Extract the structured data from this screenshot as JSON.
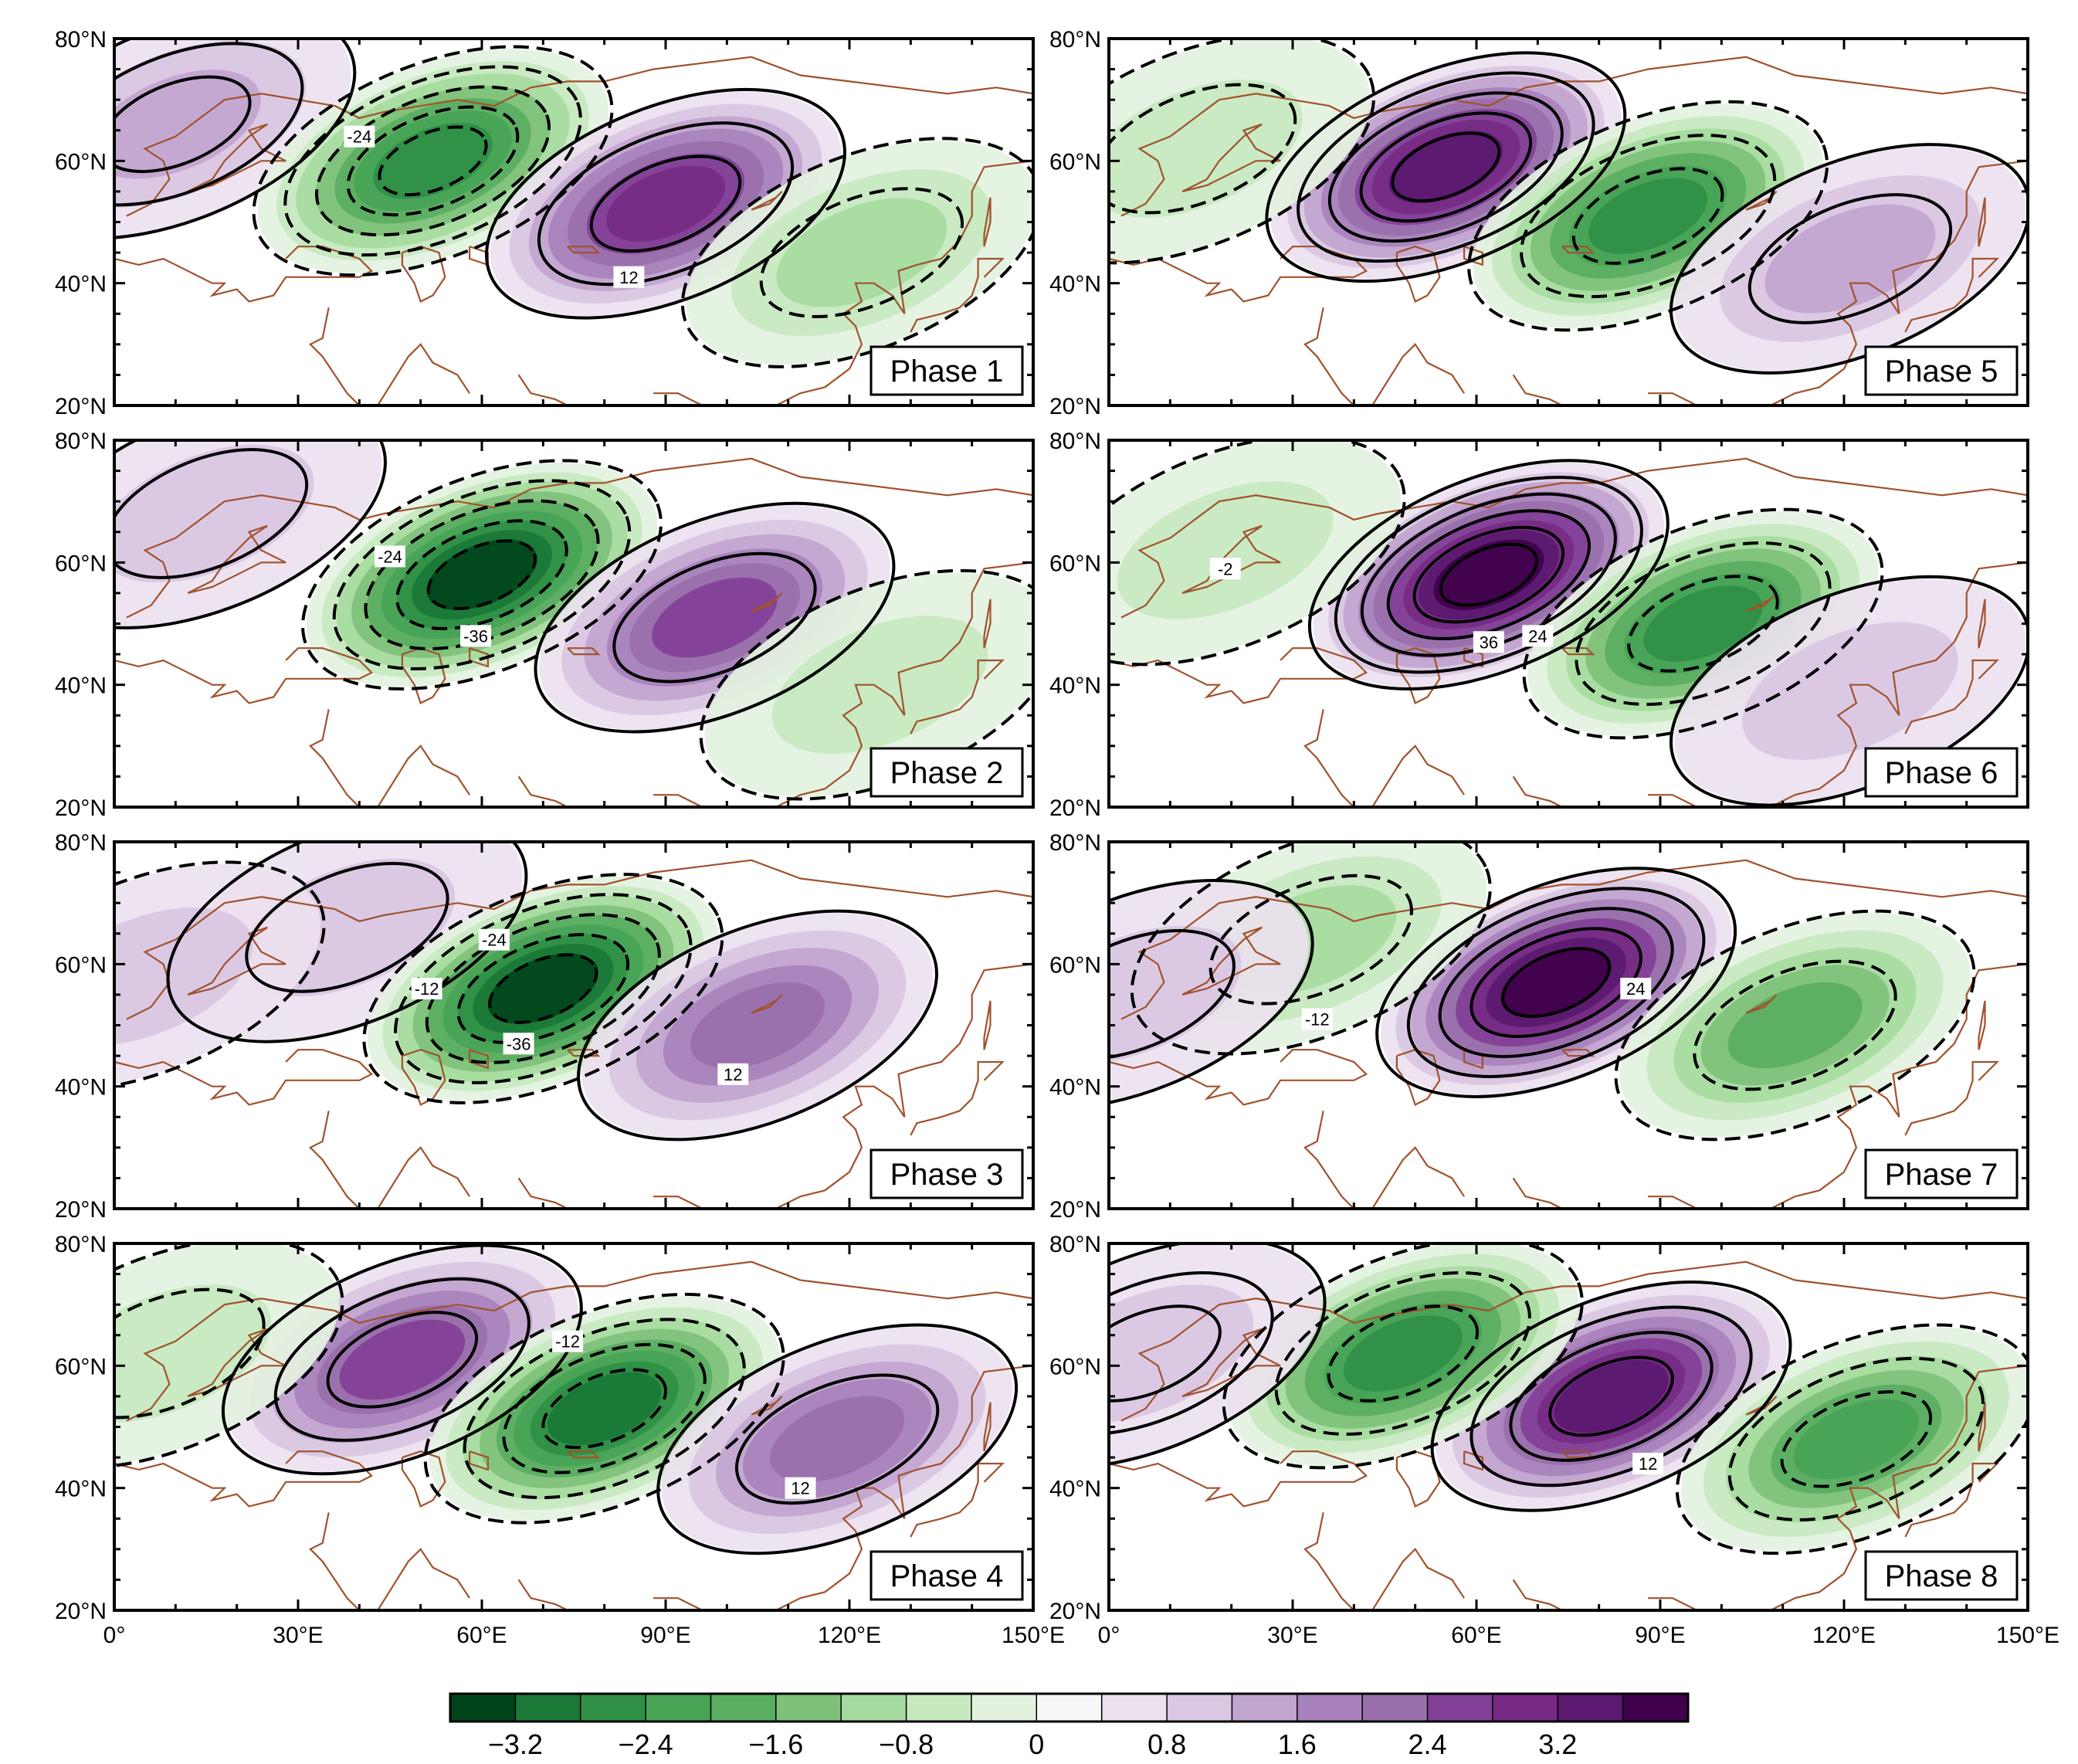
{
  "figure": {
    "type": "multi-panel anomaly map",
    "lat_labels": [
      "80°N",
      "60°N",
      "40°N",
      "20°N"
    ],
    "lon_labels": [
      "0°",
      "30°E",
      "60°E",
      "90°E",
      "120°E",
      "150°E"
    ],
    "lon_range": [
      0,
      150
    ],
    "lat_range": [
      20,
      80
    ]
  },
  "panels": [
    {
      "label": "Phase 1",
      "features": [
        {
          "lon": 10,
          "lat": 66,
          "value": 1.0,
          "contour": 12,
          "n": 3
        },
        {
          "lon": 52,
          "lat": 60,
          "value": -2.8,
          "contour": -24,
          "n": 5
        },
        {
          "lon": 90,
          "lat": 53,
          "value": 2.6,
          "contour": 12,
          "n": 3
        },
        {
          "lon": 122,
          "lat": 45,
          "value": -1.0,
          "contour": -12,
          "n": 2
        }
      ],
      "contour_labels": [
        {
          "text": "-24",
          "lon": 40,
          "lat": 64
        },
        {
          "text": "12",
          "lon": 84,
          "lat": 41
        }
      ]
    },
    {
      "label": "Phase 2",
      "features": [
        {
          "lon": 15,
          "lat": 68,
          "value": 0.6,
          "contour": 12,
          "n": 2
        },
        {
          "lon": 60,
          "lat": 58,
          "value": -3.4,
          "contour": -36,
          "n": 5
        },
        {
          "lon": 98,
          "lat": 51,
          "value": 2.4,
          "contour": 12,
          "n": 2
        },
        {
          "lon": 125,
          "lat": 40,
          "value": -0.8,
          "contour": -12,
          "n": 1
        }
      ],
      "contour_labels": [
        {
          "text": "-24",
          "lon": 45,
          "lat": 61
        },
        {
          "text": "-36",
          "lon": 59,
          "lat": 48
        }
      ]
    },
    {
      "label": "Phase 3",
      "features": [
        {
          "lon": 38,
          "lat": 66,
          "value": 0.8,
          "contour": 12,
          "n": 2
        },
        {
          "lon": 70,
          "lat": 56,
          "value": -3.4,
          "contour": -36,
          "n": 5
        },
        {
          "lon": 105,
          "lat": 50,
          "value": 1.8,
          "contour": 12,
          "n": 1
        },
        {
          "lon": 5,
          "lat": 58,
          "value": 0.2,
          "contour": -12,
          "n": 1
        }
      ],
      "contour_labels": [
        {
          "text": "-24",
          "lon": 62,
          "lat": 64
        },
        {
          "text": "-12",
          "lon": 51,
          "lat": 56
        },
        {
          "text": "-36",
          "lon": 66,
          "lat": 47
        },
        {
          "text": "12",
          "lon": 101,
          "lat": 42
        }
      ]
    },
    {
      "label": "Phase 4",
      "features": [
        {
          "lon": 47,
          "lat": 61,
          "value": 2.4,
          "contour": 12,
          "n": 3
        },
        {
          "lon": 80,
          "lat": 53,
          "value": -3.2,
          "contour": -12,
          "n": 4
        },
        {
          "lon": 118,
          "lat": 48,
          "value": 2.0,
          "contour": 12,
          "n": 2
        },
        {
          "lon": 8,
          "lat": 62,
          "value": -0.4,
          "contour": -12,
          "n": 2
        }
      ],
      "contour_labels": [
        {
          "text": "-12",
          "lon": 74,
          "lat": 64
        },
        {
          "text": "12",
          "lon": 112,
          "lat": 40
        }
      ]
    },
    {
      "label": "Phase 5",
      "features": [
        {
          "lon": 55,
          "lat": 59,
          "value": 3.2,
          "contour": 12,
          "n": 5
        },
        {
          "lon": 88,
          "lat": 51,
          "value": -2.8,
          "contour": -12,
          "n": 3
        },
        {
          "lon": 121,
          "lat": 44,
          "value": 1.4,
          "contour": 12,
          "n": 2
        },
        {
          "lon": 14,
          "lat": 62,
          "value": -0.6,
          "contour": -12,
          "n": 2
        }
      ],
      "contour_labels": []
    },
    {
      "label": "Phase 6",
      "features": [
        {
          "lon": 62,
          "lat": 58,
          "value": 3.6,
          "contour": 36,
          "n": 6
        },
        {
          "lon": 97,
          "lat": 50,
          "value": -2.6,
          "contour": -12,
          "n": 3
        },
        {
          "lon": 121,
          "lat": 39,
          "value": 0.6,
          "contour": 12,
          "n": 1
        },
        {
          "lon": 19,
          "lat": 62,
          "value": -0.6,
          "contour": -12,
          "n": 1
        }
      ],
      "contour_labels": [
        {
          "text": "-2",
          "lon": 19,
          "lat": 59
        },
        {
          "text": "36",
          "lon": 62,
          "lat": 47
        },
        {
          "text": "24",
          "lon": 70,
          "lat": 48
        }
      ]
    },
    {
      "label": "Phase 7",
      "features": [
        {
          "lon": 73,
          "lat": 57,
          "value": 3.4,
          "contour": 24,
          "n": 5
        },
        {
          "lon": 112,
          "lat": 50,
          "value": -2.0,
          "contour": -12,
          "n": 2
        },
        {
          "lon": 33,
          "lat": 64,
          "value": -1.2,
          "contour": -12,
          "n": 2
        },
        {
          "lon": 4,
          "lat": 55,
          "value": 0.4,
          "contour": 12,
          "n": 2
        }
      ],
      "contour_labels": [
        {
          "text": "-12",
          "lon": 34,
          "lat": 51
        },
        {
          "text": "24",
          "lon": 86,
          "lat": 56
        }
      ]
    },
    {
      "label": "Phase 8",
      "features": [
        {
          "lon": 82,
          "lat": 55,
          "value": 3.2,
          "contour": 12,
          "n": 4
        },
        {
          "lon": 48,
          "lat": 62,
          "value": -2.6,
          "contour": -12,
          "n": 3
        },
        {
          "lon": 122,
          "lat": 48,
          "value": -2.2,
          "contour": -12,
          "n": 3
        },
        {
          "lon": 6,
          "lat": 62,
          "value": 0.4,
          "contour": 12,
          "n": 3
        }
      ],
      "contour_labels": [
        {
          "text": "12",
          "lon": 88,
          "lat": 44
        }
      ]
    }
  ],
  "colorbar": {
    "levels": [
      -3.6,
      -3.2,
      -2.8,
      -2.4,
      -2.0,
      -1.6,
      -1.2,
      -0.8,
      -0.4,
      0,
      0.4,
      0.8,
      1.2,
      1.6,
      2.0,
      2.4,
      2.8,
      3.2,
      3.6
    ],
    "colors": [
      "#00441b",
      "#1b7837",
      "#2f8f45",
      "#47a356",
      "#5aae61",
      "#7fc07a",
      "#a6dba0",
      "#c7e9c0",
      "#e3f2df",
      "#f7f7f7",
      "#ede1ef",
      "#d9c7e3",
      "#c2a5cf",
      "#a882bc",
      "#9970ab",
      "#823f96",
      "#762a83",
      "#5b1970",
      "#40004b"
    ],
    "tick_labels": [
      "−3.2",
      "−2.4",
      "−1.6",
      "−0.8",
      "0",
      "0.8",
      "1.6",
      "2.4",
      "3.2"
    ]
  }
}
